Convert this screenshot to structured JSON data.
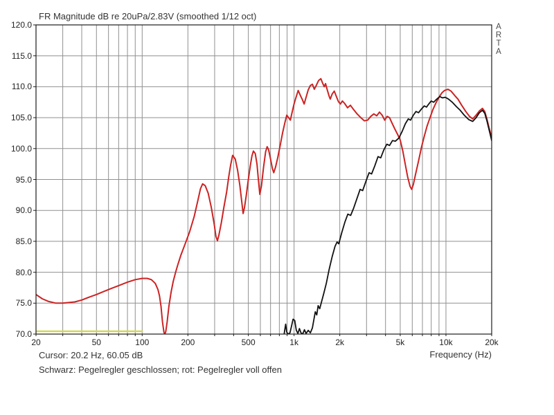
{
  "title": "FR Magnitude dB re 20uPa/2.83V (smoothed 1/12 oct)",
  "watermark": "ARTA",
  "status": {
    "cursor_text": "Cursor: 20.2 Hz, 60.05 dB",
    "legend_text": "Schwarz: Pegelregler geschlossen; rot: Pegelregler voll offen"
  },
  "colors": {
    "background": "#ffffff",
    "grid": "#8f8f8f",
    "border": "#1a1a1a",
    "red_curve": "#cc2222",
    "black_curve": "#111111",
    "yellow_marker": "#d3d855",
    "text": "#333333"
  },
  "axes": {
    "x": {
      "label": "Frequency (Hz)",
      "scale": "log",
      "min_hz": 20,
      "max_hz": 20000,
      "gridline_freqs": [
        20,
        30,
        40,
        50,
        60,
        70,
        80,
        90,
        100,
        200,
        300,
        400,
        500,
        600,
        700,
        800,
        900,
        1000,
        2000,
        3000,
        4000,
        5000,
        6000,
        7000,
        8000,
        9000,
        10000,
        20000
      ],
      "ticks": [
        {
          "f": 20,
          "label": "20"
        },
        {
          "f": 50,
          "label": "50"
        },
        {
          "f": 100,
          "label": "100"
        },
        {
          "f": 200,
          "label": "200"
        },
        {
          "f": 500,
          "label": "500"
        },
        {
          "f": 1000,
          "label": "1k"
        },
        {
          "f": 2000,
          "label": "2k"
        },
        {
          "f": 5000,
          "label": "5k"
        },
        {
          "f": 10000,
          "label": "10k"
        },
        {
          "f": 20000,
          "label": "20k"
        }
      ]
    },
    "y": {
      "unit": "dB",
      "min": 70,
      "max": 120,
      "step": 5,
      "tick_labels": [
        "120.0",
        "115.0",
        "110.0",
        "105.0",
        "100.0",
        "95.0",
        "90.0",
        "85.0",
        "80.0",
        "75.0",
        "70.0"
      ]
    }
  },
  "chart_data": {
    "type": "line",
    "title": "FR Magnitude dB re 20uPa/2.83V (smoothed 1/12 oct)",
    "xlabel": "Frequency (Hz)",
    "ylabel": "dB re 20uPa/2.83V",
    "x_scale": "log",
    "xlim": [
      20,
      20000
    ],
    "ylim": [
      70,
      120
    ],
    "grid": true,
    "legend_position": "below-plot-text",
    "series": [
      {
        "name": "rot: Pegelregler voll offen",
        "color": "#cc2222",
        "width": 2,
        "points": [
          [
            20,
            76.4
          ],
          [
            22,
            75.7
          ],
          [
            24,
            75.3
          ],
          [
            27,
            75.0
          ],
          [
            30,
            75.0
          ],
          [
            33,
            75.1
          ],
          [
            36,
            75.2
          ],
          [
            40,
            75.5
          ],
          [
            45,
            76.0
          ],
          [
            50,
            76.4
          ],
          [
            56,
            76.9
          ],
          [
            63,
            77.4
          ],
          [
            71,
            77.9
          ],
          [
            80,
            78.4
          ],
          [
            90,
            78.8
          ],
          [
            100,
            79.0
          ],
          [
            108,
            79.0
          ],
          [
            115,
            78.8
          ],
          [
            122,
            78.2
          ],
          [
            127,
            77.2
          ],
          [
            130,
            76.2
          ],
          [
            133,
            74.5
          ],
          [
            136,
            72.0
          ],
          [
            139,
            70.3
          ],
          [
            141,
            70.0
          ],
          [
            143,
            70.4
          ],
          [
            146,
            72.0
          ],
          [
            150,
            74.5
          ],
          [
            155,
            76.8
          ],
          [
            160,
            78.5
          ],
          [
            166,
            80.0
          ],
          [
            172,
            81.3
          ],
          [
            180,
            82.8
          ],
          [
            190,
            84.3
          ],
          [
            205,
            86.5
          ],
          [
            220,
            89.0
          ],
          [
            232,
            91.5
          ],
          [
            242,
            93.5
          ],
          [
            250,
            94.3
          ],
          [
            260,
            94.0
          ],
          [
            272,
            92.8
          ],
          [
            285,
            90.5
          ],
          [
            298,
            87.8
          ],
          [
            306,
            85.8
          ],
          [
            313,
            85.1
          ],
          [
            320,
            86.0
          ],
          [
            332,
            88.0
          ],
          [
            345,
            90.5
          ],
          [
            360,
            93.0
          ],
          [
            372,
            95.5
          ],
          [
            382,
            97.3
          ],
          [
            394,
            98.9
          ],
          [
            410,
            98.3
          ],
          [
            425,
            96.5
          ],
          [
            440,
            94.0
          ],
          [
            452,
            91.5
          ],
          [
            462,
            89.5
          ],
          [
            472,
            90.5
          ],
          [
            485,
            92.5
          ],
          [
            500,
            95.0
          ],
          [
            515,
            97.2
          ],
          [
            528,
            98.8
          ],
          [
            540,
            99.6
          ],
          [
            555,
            99.2
          ],
          [
            570,
            97.5
          ],
          [
            582,
            95.0
          ],
          [
            595,
            92.6
          ],
          [
            610,
            94.0
          ],
          [
            630,
            97.0
          ],
          [
            650,
            99.5
          ],
          [
            665,
            100.3
          ],
          [
            680,
            99.8
          ],
          [
            700,
            98.3
          ],
          [
            720,
            96.8
          ],
          [
            735,
            96.1
          ],
          [
            755,
            97.0
          ],
          [
            780,
            98.5
          ],
          [
            810,
            100.5
          ],
          [
            840,
            102.5
          ],
          [
            870,
            104.2
          ],
          [
            895,
            105.4
          ],
          [
            920,
            105.0
          ],
          [
            945,
            104.6
          ],
          [
            970,
            105.8
          ],
          [
            1000,
            107.2
          ],
          [
            1030,
            108.3
          ],
          [
            1065,
            109.4
          ],
          [
            1100,
            108.6
          ],
          [
            1130,
            108.0
          ],
          [
            1165,
            107.2
          ],
          [
            1200,
            108.3
          ],
          [
            1240,
            109.5
          ],
          [
            1280,
            110.2
          ],
          [
            1320,
            110.4
          ],
          [
            1360,
            109.6
          ],
          [
            1400,
            110.2
          ],
          [
            1450,
            111.0
          ],
          [
            1500,
            111.3
          ],
          [
            1540,
            110.6
          ],
          [
            1580,
            110.0
          ],
          [
            1611,
            110.5
          ],
          [
            1650,
            109.6
          ],
          [
            1700,
            108.5
          ],
          [
            1730,
            108.0
          ],
          [
            1780,
            108.8
          ],
          [
            1840,
            109.3
          ],
          [
            1900,
            108.4
          ],
          [
            1960,
            107.6
          ],
          [
            2020,
            107.2
          ],
          [
            2080,
            107.7
          ],
          [
            2150,
            107.3
          ],
          [
            2250,
            106.6
          ],
          [
            2350,
            107.0
          ],
          [
            2450,
            106.4
          ],
          [
            2600,
            105.6
          ],
          [
            2750,
            105.0
          ],
          [
            2900,
            104.5
          ],
          [
            3050,
            104.6
          ],
          [
            3200,
            105.2
          ],
          [
            3350,
            105.6
          ],
          [
            3500,
            105.3
          ],
          [
            3650,
            105.9
          ],
          [
            3800,
            105.4
          ],
          [
            3950,
            104.6
          ],
          [
            4100,
            105.2
          ],
          [
            4250,
            105.0
          ],
          [
            4400,
            104.2
          ],
          [
            4600,
            103.2
          ],
          [
            4800,
            102.3
          ],
          [
            5000,
            101.4
          ],
          [
            5200,
            99.6
          ],
          [
            5400,
            97.4
          ],
          [
            5600,
            95.4
          ],
          [
            5800,
            93.9
          ],
          [
            5950,
            93.4
          ],
          [
            6100,
            94.2
          ],
          [
            6300,
            95.8
          ],
          [
            6600,
            98.0
          ],
          [
            6900,
            100.2
          ],
          [
            7200,
            102.0
          ],
          [
            7500,
            103.6
          ],
          [
            7800,
            104.8
          ],
          [
            8200,
            106.3
          ],
          [
            8600,
            107.4
          ],
          [
            9000,
            108.3
          ],
          [
            9400,
            109.0
          ],
          [
            9800,
            109.4
          ],
          [
            10300,
            109.6
          ],
          [
            10800,
            109.3
          ],
          [
            11400,
            108.6
          ],
          [
            12000,
            108.0
          ],
          [
            12700,
            107.0
          ],
          [
            13500,
            106.0
          ],
          [
            14300,
            105.2
          ],
          [
            15000,
            104.8
          ],
          [
            15800,
            105.4
          ],
          [
            16600,
            106.1
          ],
          [
            17400,
            106.5
          ],
          [
            18000,
            106.0
          ],
          [
            18600,
            104.8
          ],
          [
            19200,
            103.4
          ],
          [
            19600,
            102.6
          ],
          [
            20000,
            101.8
          ]
        ]
      },
      {
        "name": "Schwarz: Pegelregler geschlossen",
        "color": "#111111",
        "width": 1.8,
        "points": [
          [
            860,
            70.0
          ],
          [
            880,
            71.6
          ],
          [
            895,
            70.3
          ],
          [
            915,
            70.0
          ],
          [
            940,
            70.2
          ],
          [
            960,
            71.2
          ],
          [
            985,
            72.4
          ],
          [
            1010,
            72.2
          ],
          [
            1035,
            70.6
          ],
          [
            1060,
            70.1
          ],
          [
            1085,
            70.9
          ],
          [
            1110,
            70.2
          ],
          [
            1140,
            70.0
          ],
          [
            1170,
            70.7
          ],
          [
            1200,
            70.1
          ],
          [
            1240,
            70.6
          ],
          [
            1280,
            70.2
          ],
          [
            1320,
            71.0
          ],
          [
            1350,
            72.3
          ],
          [
            1380,
            73.6
          ],
          [
            1410,
            73.1
          ],
          [
            1440,
            74.6
          ],
          [
            1475,
            74.1
          ],
          [
            1520,
            75.3
          ],
          [
            1570,
            76.6
          ],
          [
            1630,
            78.2
          ],
          [
            1700,
            80.4
          ],
          [
            1780,
            82.5
          ],
          [
            1860,
            84.2
          ],
          [
            1920,
            84.9
          ],
          [
            1970,
            84.6
          ],
          [
            2060,
            86.4
          ],
          [
            2160,
            88.1
          ],
          [
            2260,
            89.4
          ],
          [
            2360,
            89.2
          ],
          [
            2470,
            90.4
          ],
          [
            2600,
            92.0
          ],
          [
            2720,
            93.4
          ],
          [
            2830,
            93.2
          ],
          [
            2980,
            94.8
          ],
          [
            3120,
            96.1
          ],
          [
            3240,
            95.9
          ],
          [
            3400,
            97.2
          ],
          [
            3570,
            98.7
          ],
          [
            3720,
            98.5
          ],
          [
            3900,
            99.8
          ],
          [
            4080,
            100.7
          ],
          [
            4250,
            100.5
          ],
          [
            4450,
            101.3
          ],
          [
            4650,
            101.2
          ],
          [
            4900,
            101.7
          ],
          [
            5150,
            102.8
          ],
          [
            5400,
            104.0
          ],
          [
            5650,
            104.8
          ],
          [
            5850,
            104.6
          ],
          [
            6100,
            105.4
          ],
          [
            6350,
            106.0
          ],
          [
            6600,
            105.8
          ],
          [
            6900,
            106.4
          ],
          [
            7200,
            106.9
          ],
          [
            7450,
            106.7
          ],
          [
            7700,
            107.2
          ],
          [
            8000,
            107.7
          ],
          [
            8300,
            107.5
          ],
          [
            8700,
            108.0
          ],
          [
            9100,
            108.4
          ],
          [
            9500,
            108.2
          ],
          [
            9900,
            108.3
          ],
          [
            10400,
            108.0
          ],
          [
            11000,
            107.5
          ],
          [
            11700,
            106.8
          ],
          [
            12400,
            106.2
          ],
          [
            13200,
            105.4
          ],
          [
            14100,
            104.7
          ],
          [
            15000,
            104.4
          ],
          [
            15800,
            105.0
          ],
          [
            16600,
            105.8
          ],
          [
            17400,
            106.2
          ],
          [
            18000,
            105.7
          ],
          [
            18600,
            104.5
          ],
          [
            19200,
            103.1
          ],
          [
            19600,
            102.2
          ],
          [
            20000,
            101.3
          ]
        ]
      },
      {
        "name": "overlay-marker-70dB",
        "color": "#d3d855",
        "width": 2.5,
        "points": [
          [
            20,
            70.45
          ],
          [
            100,
            70.45
          ]
        ]
      }
    ]
  }
}
